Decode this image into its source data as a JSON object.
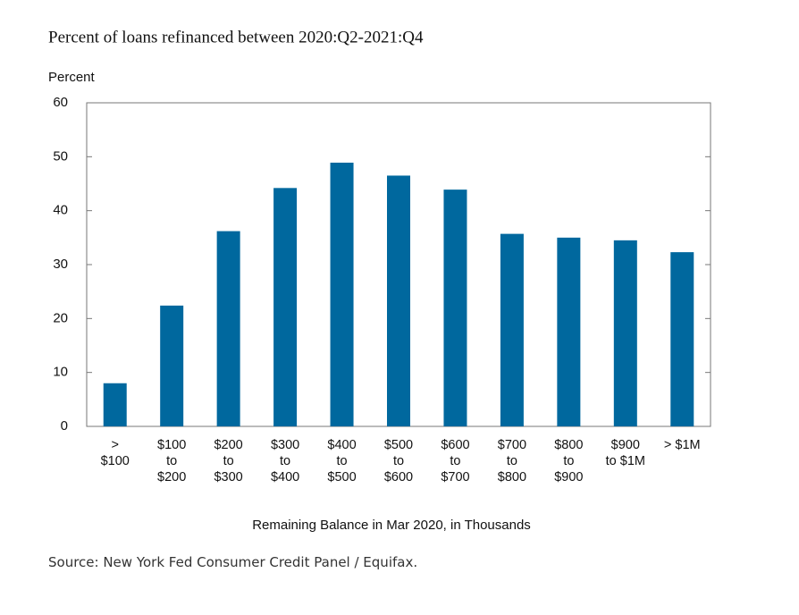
{
  "chart_data": {
    "type": "bar",
    "title": "Percent of loans refinanced between 2020:Q2-2021:Q4",
    "y_axis_label": "Percent",
    "x_axis_label": "Remaining Balance in Mar 2020, in Thousands",
    "source": "Source: New York Fed Consumer Credit Panel / Equifax.",
    "categories": [
      "> \n$100",
      "$100\nto\n$200",
      "$200\nto\n$300",
      "$300\nto\n$400",
      "$400\nto\n$500",
      "$500\nto\n$600",
      "$600\nto\n$700",
      "$700\nto\n$800",
      "$800\nto\n$900",
      "$900\nto $1M",
      "> $1M"
    ],
    "values": [
      8.0,
      22.4,
      36.2,
      44.2,
      48.9,
      46.5,
      43.9,
      35.7,
      35.0,
      34.5,
      32.3
    ],
    "color": "#00689e",
    "ylim": [
      0,
      60
    ],
    "yticks": [
      0,
      10,
      20,
      30,
      40,
      50,
      60
    ],
    "grid": false
  }
}
